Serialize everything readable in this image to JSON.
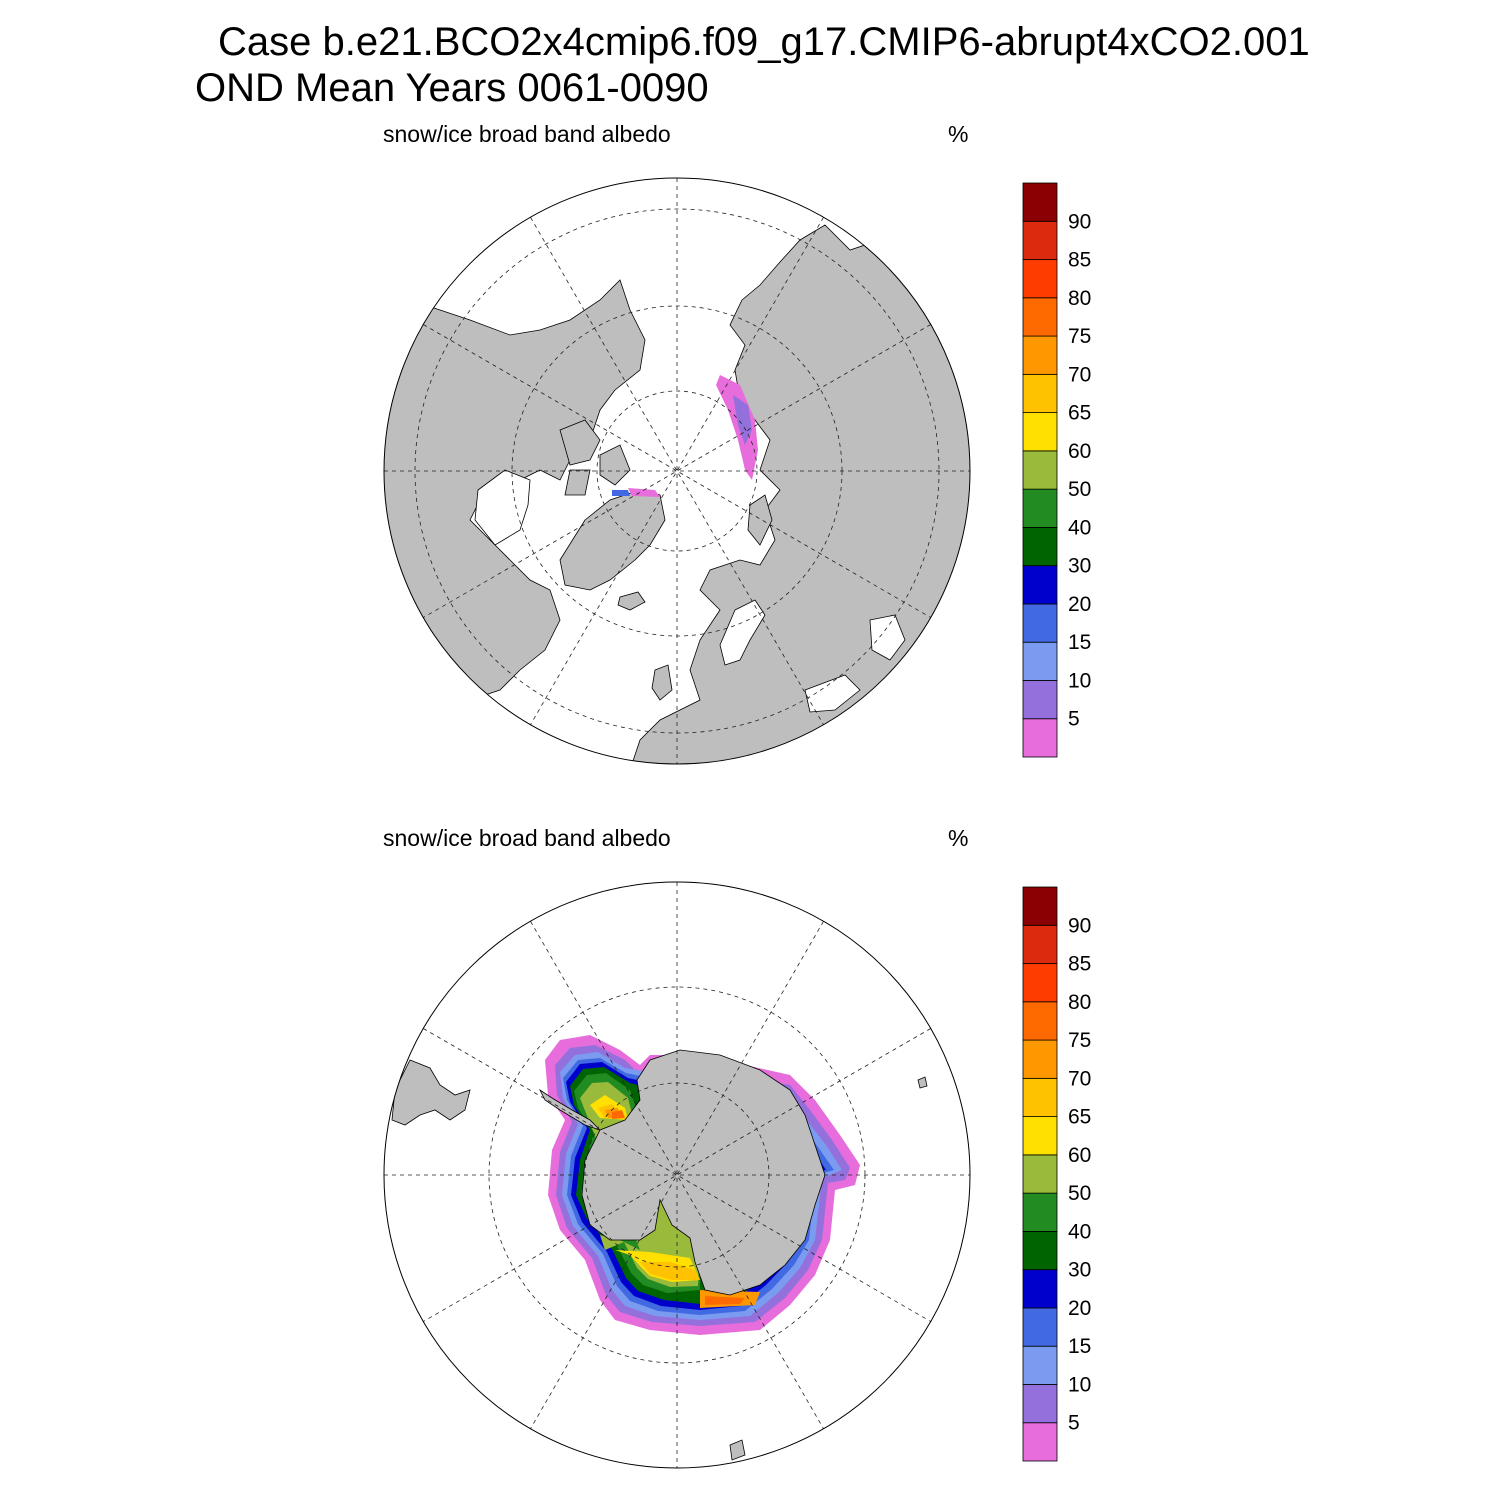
{
  "title": {
    "line1": "Case b.e21.BCO2x4cmip6.f09_g17.CMIP6-abrupt4xCO2.001",
    "line2": "OND Mean   Years 0061-0090"
  },
  "colors": {
    "land": "#bebebe",
    "ocean": "#ffffff",
    "contour_palette": [
      "#e66ddb",
      "#9370db",
      "#7b9bf0",
      "#4169e1",
      "#0000cd",
      "#006400",
      "#228b22",
      "#9aba3c",
      "#ffe000",
      "#ffc200",
      "#ff9800",
      "#ff6a00",
      "#ff3c00",
      "#dc2a0f",
      "#8b0000"
    ]
  },
  "panels": [
    {
      "id": "north",
      "hemisphere": "north-polar-stereographic",
      "variable_label": "snow/ice broad band albedo",
      "units_label": "%"
    },
    {
      "id": "south",
      "hemisphere": "south-polar-stereographic",
      "variable_label": "snow/ice broad band albedo",
      "units_label": "%"
    }
  ],
  "colorbar": {
    "levels": [
      "5",
      "10",
      "15",
      "20",
      "30",
      "40",
      "50",
      "60",
      "65",
      "70",
      "75",
      "80",
      "85",
      "90"
    ]
  }
}
